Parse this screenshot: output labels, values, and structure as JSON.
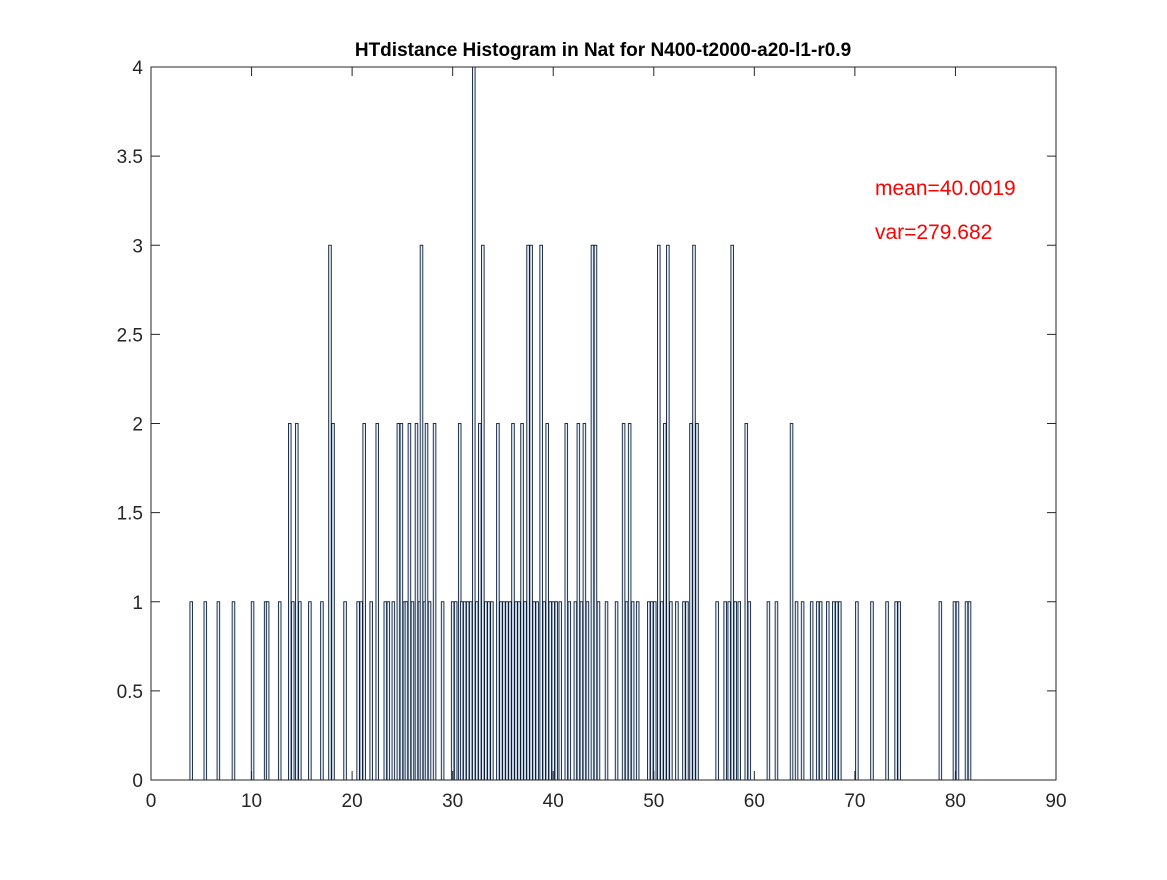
{
  "chart_data": {
    "type": "bar",
    "title": "HTdistance Histogram in Nat for N400-t2000-a20-l1-r0.9",
    "annotations": [
      "mean=40.0019",
      "var=279.682"
    ],
    "annotation_color": "#ff0000",
    "color": "#e6eef8",
    "edge_color": "#0b1f3a",
    "x": [
      4.0,
      5.4,
      6.7,
      8.2,
      10.1,
      11.4,
      11.6,
      12.8,
      13.8,
      14.1,
      14.5,
      14.8,
      15.8,
      17.0,
      17.8,
      18.1,
      19.3,
      20.6,
      20.9,
      21.2,
      21.9,
      22.5,
      23.3,
      23.6,
      24.1,
      24.6,
      24.9,
      25.2,
      25.4,
      25.7,
      26.0,
      26.4,
      26.7,
      26.9,
      27.2,
      27.4,
      27.7,
      28.2,
      29.0,
      30.0,
      30.3,
      30.7,
      30.9,
      31.2,
      31.5,
      31.8,
      32.1,
      32.4,
      32.7,
      33.0,
      33.3,
      33.6,
      33.9,
      34.5,
      34.8,
      35.1,
      35.4,
      35.7,
      36.0,
      36.3,
      36.6,
      36.9,
      37.2,
      37.5,
      37.8,
      38.1,
      38.4,
      38.8,
      39.1,
      39.4,
      39.7,
      40.0,
      40.3,
      40.7,
      41.3,
      41.6,
      42.2,
      42.5,
      42.8,
      43.1,
      43.4,
      43.9,
      44.2,
      44.5,
      45.3,
      46.3,
      47.0,
      47.3,
      47.6,
      47.9,
      48.4,
      49.5,
      49.8,
      50.1,
      50.5,
      50.8,
      51.1,
      51.4,
      51.7,
      52.3,
      53.0,
      53.3,
      53.7,
      54.0,
      54.3,
      56.3,
      57.1,
      57.5,
      57.8,
      58.1,
      58.5,
      59.2,
      59.5,
      61.4,
      62.2,
      63.7,
      64.2,
      64.8,
      65.7,
      66.3,
      66.6,
      67.3,
      67.9,
      68.2,
      68.5,
      70.2,
      71.7,
      73.2,
      74.1,
      74.4,
      78.5,
      79.9,
      80.2,
      81.1,
      81.4
    ],
    "values": [
      1,
      1,
      1,
      1,
      1,
      1,
      1,
      1,
      2,
      1,
      2,
      1,
      1,
      1,
      3,
      2,
      1,
      1,
      1,
      2,
      1,
      2,
      1,
      1,
      1,
      2,
      2,
      1,
      1,
      2,
      1,
      2,
      1,
      3,
      1,
      2,
      1,
      2,
      1,
      1,
      1,
      2,
      1,
      1,
      1,
      1,
      4,
      1,
      2,
      3,
      1,
      1,
      1,
      2,
      1,
      1,
      1,
      1,
      2,
      1,
      1,
      2,
      1,
      3,
      3,
      1,
      1,
      3,
      1,
      2,
      1,
      1,
      1,
      1,
      2,
      1,
      1,
      2,
      1,
      2,
      1,
      3,
      3,
      1,
      1,
      1,
      2,
      1,
      2,
      1,
      1,
      1,
      1,
      1,
      3,
      1,
      2,
      3,
      1,
      1,
      1,
      1,
      2,
      3,
      2,
      1,
      1,
      1,
      3,
      1,
      1,
      2,
      1,
      1,
      1,
      2,
      1,
      1,
      1,
      1,
      1,
      1,
      1,
      1,
      1,
      1,
      1,
      1,
      1,
      1,
      1,
      1,
      1,
      1,
      1
    ],
    "xlim": [
      0,
      90
    ],
    "xticks": [
      0,
      10,
      20,
      30,
      40,
      50,
      60,
      70,
      80,
      90
    ],
    "ylim": [
      0,
      4
    ],
    "yticks": [
      0,
      0.5,
      1,
      1.5,
      2,
      2.5,
      3,
      3.5,
      4
    ]
  }
}
